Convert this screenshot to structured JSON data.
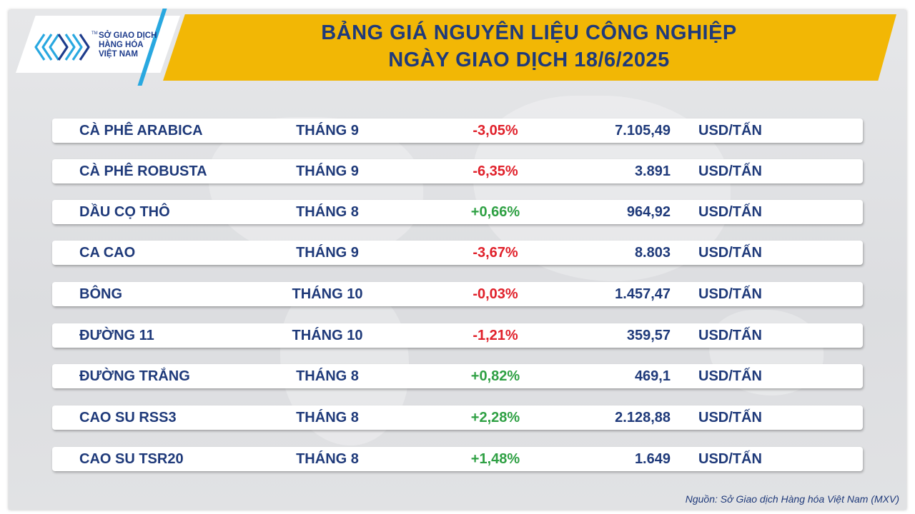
{
  "header": {
    "title_line1": "BẢNG GIÁ NGUYÊN LIỆU CÔNG NGHIỆP",
    "title_line2": "NGÀY GIAO DỊCH 18/6/2025"
  },
  "logo": {
    "line1": "SỞ GIAO DỊCH",
    "line2": "HÀNG HÓA",
    "line3": "VIỆT NAM",
    "tm": "TM",
    "icon": "mxv-logo-icon"
  },
  "colors": {
    "banner": "#f2b705",
    "title_text": "#1f3a7a",
    "negative": "#e0202a",
    "positive": "#2ea043"
  },
  "table": {
    "rows": [
      {
        "name": "CÀ PHÊ ARABICA",
        "month": "THÁNG 9",
        "change": "-3,05%",
        "direction": "down",
        "price": "7.105,49",
        "unit": "USD/TẤN"
      },
      {
        "name": "CÀ PHÊ ROBUSTA",
        "month": "THÁNG 9",
        "change": "-6,35%",
        "direction": "down",
        "price": "3.891",
        "unit": "USD/TẤN"
      },
      {
        "name": "DẦU CỌ THÔ",
        "month": "THÁNG 8",
        "change": "+0,66%",
        "direction": "up",
        "price": "964,92",
        "unit": "USD/TẤN"
      },
      {
        "name": "CA CAO",
        "month": "THÁNG 9",
        "change": "-3,67%",
        "direction": "down",
        "price": "8.803",
        "unit": "USD/TẤN"
      },
      {
        "name": "BÔNG",
        "month": "THÁNG 10",
        "change": "-0,03%",
        "direction": "down",
        "price": "1.457,47",
        "unit": "USD/TẤN"
      },
      {
        "name": "ĐƯỜNG 11",
        "month": "THÁNG 10",
        "change": "-1,21%",
        "direction": "down",
        "price": "359,57",
        "unit": "USD/TẤN"
      },
      {
        "name": "ĐƯỜNG TRẮNG",
        "month": "THÁNG 8",
        "change": "+0,82%",
        "direction": "up",
        "price": "469,1",
        "unit": "USD/TẤN"
      },
      {
        "name": "CAO SU RSS3",
        "month": "THÁNG 8",
        "change": "+2,28%",
        "direction": "up",
        "price": "2.128,88",
        "unit": "USD/TẤN"
      },
      {
        "name": "CAO SU TSR20",
        "month": "THÁNG 8",
        "change": "+1,48%",
        "direction": "up",
        "price": "1.649",
        "unit": "USD/TẤN"
      }
    ]
  },
  "footer": {
    "source": "Nguồn: Sở Giao dịch Hàng hóa Việt Nam (MXV)"
  }
}
